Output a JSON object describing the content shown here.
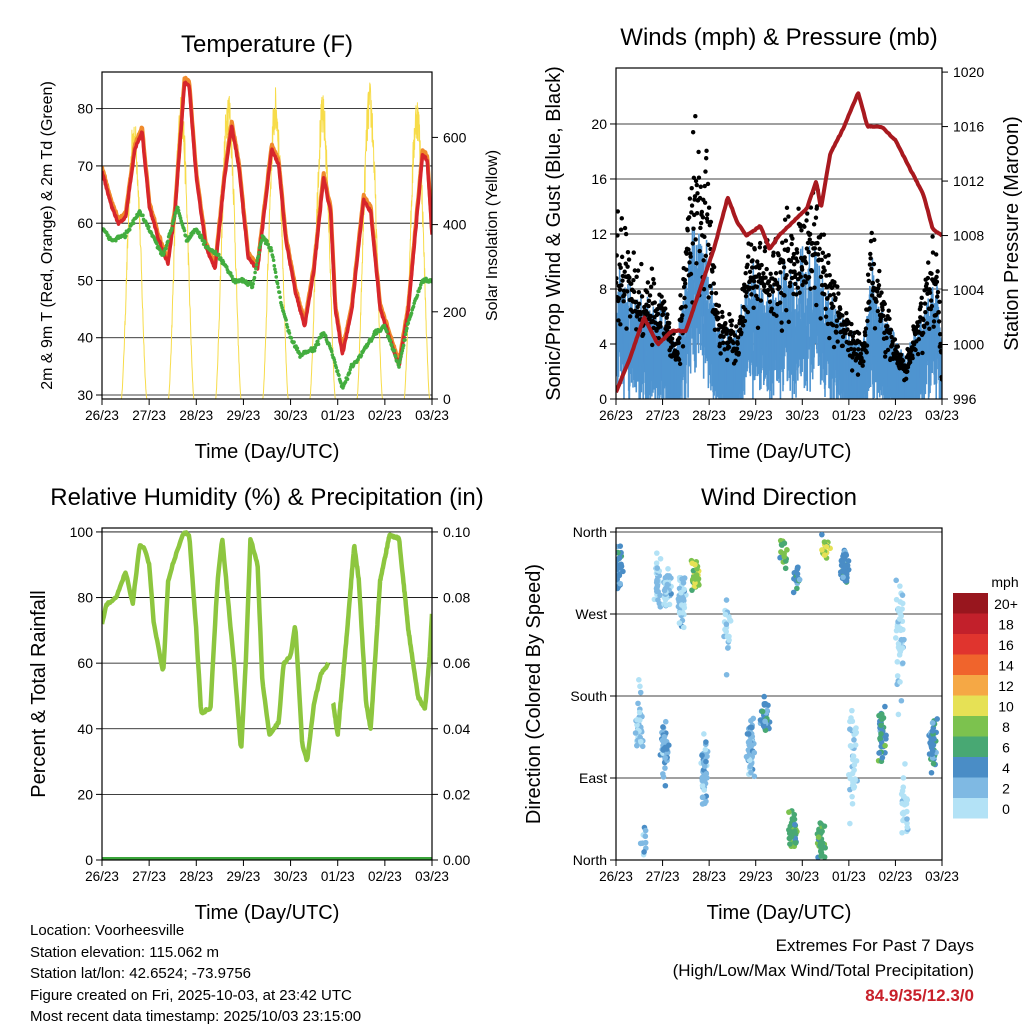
{
  "chart_data": [
    {
      "type": "line",
      "title": "Temperature (F)",
      "xlabel": "Time (Day/UTC)",
      "ylabel": "2m & 9m T (Red, Orange) & 2m Td (Green)",
      "y2label": "Solar Insolation (Yellow)",
      "xticks": [
        "26/23",
        "27/23",
        "28/23",
        "29/23",
        "30/23",
        "01/23",
        "02/23",
        "03/23"
      ],
      "xlim": [
        0,
        7
      ],
      "ylim": [
        29.3,
        86.4
      ],
      "yticks": [
        30,
        40,
        50,
        60,
        70,
        80
      ],
      "y2lim": [
        0,
        750
      ],
      "y2ticks": [
        0,
        200,
        400,
        600
      ],
      "grid": true,
      "series": [
        {
          "name": "2m T",
          "color": "#d7262b",
          "axis": "left",
          "x": [
            0,
            0.2,
            0.35,
            0.5,
            0.7,
            0.85,
            1.0,
            1.2,
            1.4,
            1.55,
            1.75,
            1.85,
            2.0,
            2.2,
            2.4,
            2.6,
            2.75,
            2.9,
            3.1,
            3.3,
            3.6,
            3.75,
            3.9,
            4.1,
            4.3,
            4.5,
            4.7,
            4.85,
            4.95,
            5.1,
            5.3,
            5.55,
            5.7,
            5.9,
            6.1,
            6.3,
            6.5,
            6.8,
            6.9,
            7.0
          ],
          "y": [
            69,
            63,
            60,
            61,
            73,
            76,
            63,
            57,
            53,
            62,
            84.5,
            84,
            68,
            56,
            52,
            68,
            77,
            70,
            54,
            52,
            73,
            70,
            57,
            48,
            42,
            52,
            68,
            62,
            45,
            37,
            45,
            64,
            62,
            45,
            40,
            35,
            45,
            72,
            71,
            58
          ]
        },
        {
          "name": "9m T",
          "color": "#f08a2c",
          "axis": "left",
          "offset": 0.8
        },
        {
          "name": "2m Td",
          "color": "#43ad3f",
          "axis": "left",
          "x": [
            0,
            0.2,
            0.5,
            0.8,
            1.0,
            1.3,
            1.6,
            1.8,
            2.0,
            2.2,
            2.5,
            2.8,
            3.0,
            3.2,
            3.4,
            3.6,
            3.8,
            4.0,
            4.2,
            4.5,
            4.7,
            4.85,
            5.0,
            5.1,
            5.3,
            5.5,
            5.8,
            6.0,
            6.3,
            6.5,
            6.8,
            7.0
          ],
          "y": [
            59,
            57,
            58,
            62,
            59,
            54,
            63,
            57,
            59,
            56,
            54,
            50,
            50,
            49,
            58,
            55,
            46,
            40,
            37,
            38,
            41,
            38,
            34,
            31,
            35,
            37,
            41,
            42,
            35,
            43,
            50,
            50
          ]
        },
        {
          "name": "Solar Insolation",
          "color": "#f7dc4a",
          "axis": "right",
          "daily_peak_day_fraction": 0.68,
          "daily_peaks": [
            650,
            700,
            720,
            715,
            700,
            730,
            700
          ]
        }
      ]
    },
    {
      "type": "line",
      "title": "Winds (mph) & Pressure (mb)",
      "xlabel": "Time (Day/UTC)",
      "ylabel": "Sonic/Prop Wind & Gust (Blue, Black)",
      "y2label": "Station Pressure (Maroon)",
      "xticks": [
        "26/23",
        "27/23",
        "28/23",
        "29/23",
        "30/23",
        "01/23",
        "02/23",
        "03/23"
      ],
      "xlim": [
        0,
        7
      ],
      "ylim": [
        0,
        24.07
      ],
      "yticks": [
        0,
        4,
        8,
        12,
        16,
        20
      ],
      "y2lim": [
        996,
        1020.3
      ],
      "y2ticks": [
        996,
        1000,
        1004,
        1008,
        1012,
        1016,
        1020
      ],
      "grid": true,
      "series": [
        {
          "name": "Gust",
          "color": "#000000",
          "axis": "left",
          "kind": "scatter",
          "x": [
            0,
            0.5,
            1.0,
            1.3,
            1.7,
            1.95,
            2.2,
            2.6,
            2.9,
            3.3,
            3.7,
            4.0,
            4.3,
            4.5,
            4.9,
            5.3,
            5.5,
            5.8,
            6.2,
            6.6,
            6.9,
            7.0
          ],
          "y": [
            10,
            7,
            6,
            3,
            15,
            12,
            5,
            4,
            10,
            8,
            10,
            10,
            12,
            8,
            5,
            3,
            10,
            5,
            2,
            6,
            9,
            2
          ]
        },
        {
          "name": "Wind",
          "color": "#4f94d0",
          "axis": "left",
          "kind": "band",
          "ratio_to_gust": 0.55
        },
        {
          "name": "Station Pressure",
          "color": "#a8191f",
          "axis": "right",
          "x": [
            0,
            0.3,
            0.6,
            0.9,
            1.2,
            1.5,
            1.8,
            2.1,
            2.4,
            2.6,
            2.8,
            3.1,
            3.3,
            3.5,
            3.8,
            4.1,
            4.3,
            4.4,
            4.6,
            4.9,
            5.2,
            5.4,
            5.7,
            6.0,
            6.3,
            6.6,
            6.8,
            7.0
          ],
          "y": [
            996.5,
            999,
            1002,
            1000,
            1001,
            1001,
            1004,
            1007,
            1010.8,
            1009,
            1008,
            1008.7,
            1007,
            1008,
            1009,
            1010,
            1012,
            1010,
            1014,
            1016,
            1018.5,
            1016,
            1016,
            1015,
            1013,
            1011,
            1008.5,
            1008
          ]
        }
      ]
    },
    {
      "type": "line",
      "title": "Relative Humidity (%) & Precipitation (in)",
      "xlabel": "Time (Day/UTC)",
      "ylabel": "Percent & Total Rainfall",
      "xticks": [
        "26/23",
        "27/23",
        "28/23",
        "29/23",
        "30/23",
        "01/23",
        "02/23",
        "03/23"
      ],
      "xlim": [
        0,
        7
      ],
      "ylim": [
        0,
        101.2
      ],
      "yticks": [
        0,
        20,
        40,
        60,
        80,
        100
      ],
      "y2lim": [
        0,
        0.1012
      ],
      "y2ticks": [
        "0.00",
        "0.02",
        "0.04",
        "0.06",
        "0.08",
        "0.10"
      ],
      "grid": true,
      "series": [
        {
          "name": "Relative Humidity",
          "color": "#8dc63f",
          "axis": "left",
          "segments": [
            {
              "x": [
                0,
                0.1,
                0.3,
                0.5,
                0.65,
                0.8,
                0.9,
                1.0,
                1.1,
                1.3,
                1.4,
                1.5,
                1.7,
                1.75,
                1.85,
                2.0,
                2.1,
                2.3,
                2.45,
                2.55,
                2.8,
                2.95,
                3.05,
                3.15,
                3.3,
                3.4,
                3.55,
                3.75,
                3.85,
                4.0,
                4.1,
                4.25,
                4.35,
                4.5,
                4.65,
                4.8
              ],
              "y": [
                72,
                78,
                80,
                88,
                78,
                96,
                95,
                90,
                72,
                57,
                85,
                90,
                99,
                100,
                99,
                70,
                45,
                46,
                85,
                98,
                60,
                33,
                60,
                98,
                90,
                55,
                38,
                42,
                60,
                62,
                72,
                35,
                30,
                48,
                57,
                60
              ]
            },
            {
              "x": [
                4.9,
                5.0,
                5.2,
                5.35,
                5.45,
                5.6,
                5.7,
                5.9,
                6.1,
                6.3,
                6.5,
                6.7,
                6.85,
                6.95,
                7.0
              ],
              "y": [
                48,
                38,
                70,
                96,
                85,
                48,
                40,
                85,
                99,
                98,
                70,
                50,
                46,
                62,
                75
              ]
            }
          ]
        },
        {
          "name": "Total Precipitation",
          "color": "#3aa53a",
          "axis": "right",
          "x": [
            0,
            7
          ],
          "y": [
            0,
            0
          ]
        }
      ]
    },
    {
      "type": "scatter",
      "title": "Wind Direction",
      "xlabel": "Time (Day/UTC)",
      "ylabel": "Direction (Colored By Speed)",
      "xticks": [
        "26/23",
        "27/23",
        "28/23",
        "29/23",
        "30/23",
        "01/23",
        "02/23",
        "03/23"
      ],
      "xlim": [
        0,
        7
      ],
      "ylim": [
        0,
        364.4
      ],
      "yticks": [
        {
          "value": 0,
          "label": "North"
        },
        {
          "value": 90,
          "label": "East"
        },
        {
          "value": 180,
          "label": "South"
        },
        {
          "value": 270,
          "label": "West"
        },
        {
          "value": 360,
          "label": "North"
        }
      ],
      "grid": true,
      "clusters_columns": [
        "day",
        "direction_deg",
        "spread_deg",
        "count",
        "speed_mph"
      ],
      "clusters": [
        [
          0.05,
          320,
          30,
          40,
          5
        ],
        [
          0.5,
          150,
          60,
          40,
          2
        ],
        [
          0.6,
          20,
          20,
          10,
          3
        ],
        [
          0.9,
          310,
          40,
          30,
          2
        ],
        [
          1.05,
          120,
          50,
          50,
          4
        ],
        [
          1.1,
          300,
          30,
          40,
          2
        ],
        [
          1.4,
          280,
          40,
          50,
          2
        ],
        [
          1.7,
          310,
          25,
          35,
          9
        ],
        [
          1.9,
          100,
          50,
          50,
          3
        ],
        [
          2.4,
          250,
          60,
          20,
          2
        ],
        [
          2.9,
          120,
          50,
          60,
          3
        ],
        [
          3.2,
          160,
          30,
          30,
          5
        ],
        [
          3.6,
          340,
          30,
          15,
          8
        ],
        [
          3.9,
          310,
          20,
          20,
          5
        ],
        [
          3.8,
          30,
          30,
          40,
          7
        ],
        [
          4.5,
          345,
          20,
          15,
          10
        ],
        [
          4.4,
          20,
          30,
          40,
          7
        ],
        [
          4.9,
          320,
          30,
          50,
          5
        ],
        [
          5.1,
          120,
          100,
          40,
          1
        ],
        [
          5.7,
          140,
          50,
          40,
          6
        ],
        [
          6.1,
          250,
          100,
          50,
          1
        ],
        [
          6.8,
          130,
          40,
          50,
          5
        ],
        [
          6.2,
          60,
          60,
          30,
          1
        ]
      ],
      "legend": {
        "title": "mph",
        "placement": "right",
        "bins": [
          {
            "label": "20+",
            "min": 20,
            "color": "#98161e"
          },
          {
            "label": "18",
            "min": 18,
            "color": "#c2202b"
          },
          {
            "label": "16",
            "min": 16,
            "color": "#e0342e"
          },
          {
            "label": "14",
            "min": 14,
            "color": "#f0642c"
          },
          {
            "label": "12",
            "min": 12,
            "color": "#f5a845"
          },
          {
            "label": "10",
            "min": 10,
            "color": "#e6e155"
          },
          {
            "label": "8",
            "min": 8,
            "color": "#7cc24e"
          },
          {
            "label": "6",
            "min": 6,
            "color": "#48a873"
          },
          {
            "label": "4",
            "min": 4,
            "color": "#4a8dc6"
          },
          {
            "label": "2",
            "min": 2,
            "color": "#7fb9e3"
          },
          {
            "label": "0",
            "min": 0,
            "color": "#b3e2f6"
          }
        ]
      }
    }
  ],
  "info": {
    "location": "Location: Voorheesville",
    "elevation": "Station elevation: 115.062 m",
    "latlon": "Station lat/lon: 42.6524; -73.9756",
    "created": "Figure created on Fri, 2025-10-03, at 23:42 UTC",
    "timestamp": "Most recent data timestamp: 2025/10/03 23:15:00"
  },
  "extremes": {
    "title": "Extremes For Past 7 Days",
    "subtitle": "(High/Low/Max Wind/Total Precipitation)",
    "values": "84.9/35/12.3/0"
  }
}
